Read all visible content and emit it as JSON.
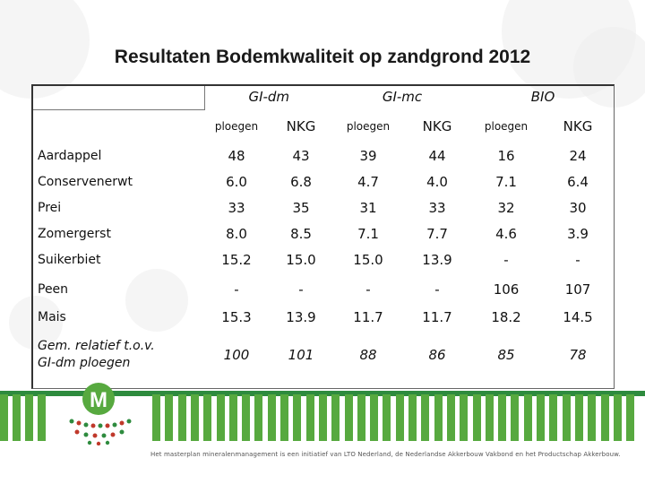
{
  "title": "Resultaten Bodemkwaliteit op zandgrond 2012",
  "groups": [
    "GI-dm",
    "GI-mc",
    "BIO"
  ],
  "subheaders": [
    "ploegen",
    "NKG",
    "ploegen",
    "NKG",
    "ploegen",
    "NKG"
  ],
  "rows": [
    {
      "label": "Aardappel",
      "values": [
        "48",
        "43",
        "39",
        "44",
        "16",
        "24"
      ]
    },
    {
      "label": "Conservenerwt",
      "values": [
        "6.0",
        "6.8",
        "4.7",
        "4.0",
        "7.1",
        "6.4"
      ]
    },
    {
      "label": "Prei",
      "values": [
        "33",
        "35",
        "31",
        "33",
        "32",
        "30"
      ]
    },
    {
      "label": "Zomergerst",
      "values": [
        "8.0",
        "8.5",
        "7.1",
        "7.7",
        "4.6",
        "3.9"
      ]
    },
    {
      "label": "Suikerbiet",
      "values": [
        "15.2",
        "15.0",
        "15.0",
        "13.9",
        "-",
        "-"
      ]
    },
    {
      "label": "Peen",
      "values": [
        "-",
        "-",
        "-",
        "-",
        "106",
        "107"
      ]
    },
    {
      "label": "Mais",
      "values": [
        "15.3",
        "13.9",
        "11.7",
        "11.7",
        "18.2",
        "14.5"
      ]
    },
    {
      "label_line1": "Gem. relatief t.o.v.",
      "label_line2": "GI-dm ploegen",
      "values": [
        "100",
        "101",
        "88",
        "86",
        "85",
        "78"
      ]
    }
  ],
  "footer": "Het masterplan mineralenmanagement is een initiatief van LTO Nederland, de Nederlandse Akkerbouw Vakbond en het Productschap Akkerbouw.",
  "logo_letter": "M",
  "colors": {
    "green": "#2e8b3e",
    "lightgreen": "#57a93f"
  }
}
